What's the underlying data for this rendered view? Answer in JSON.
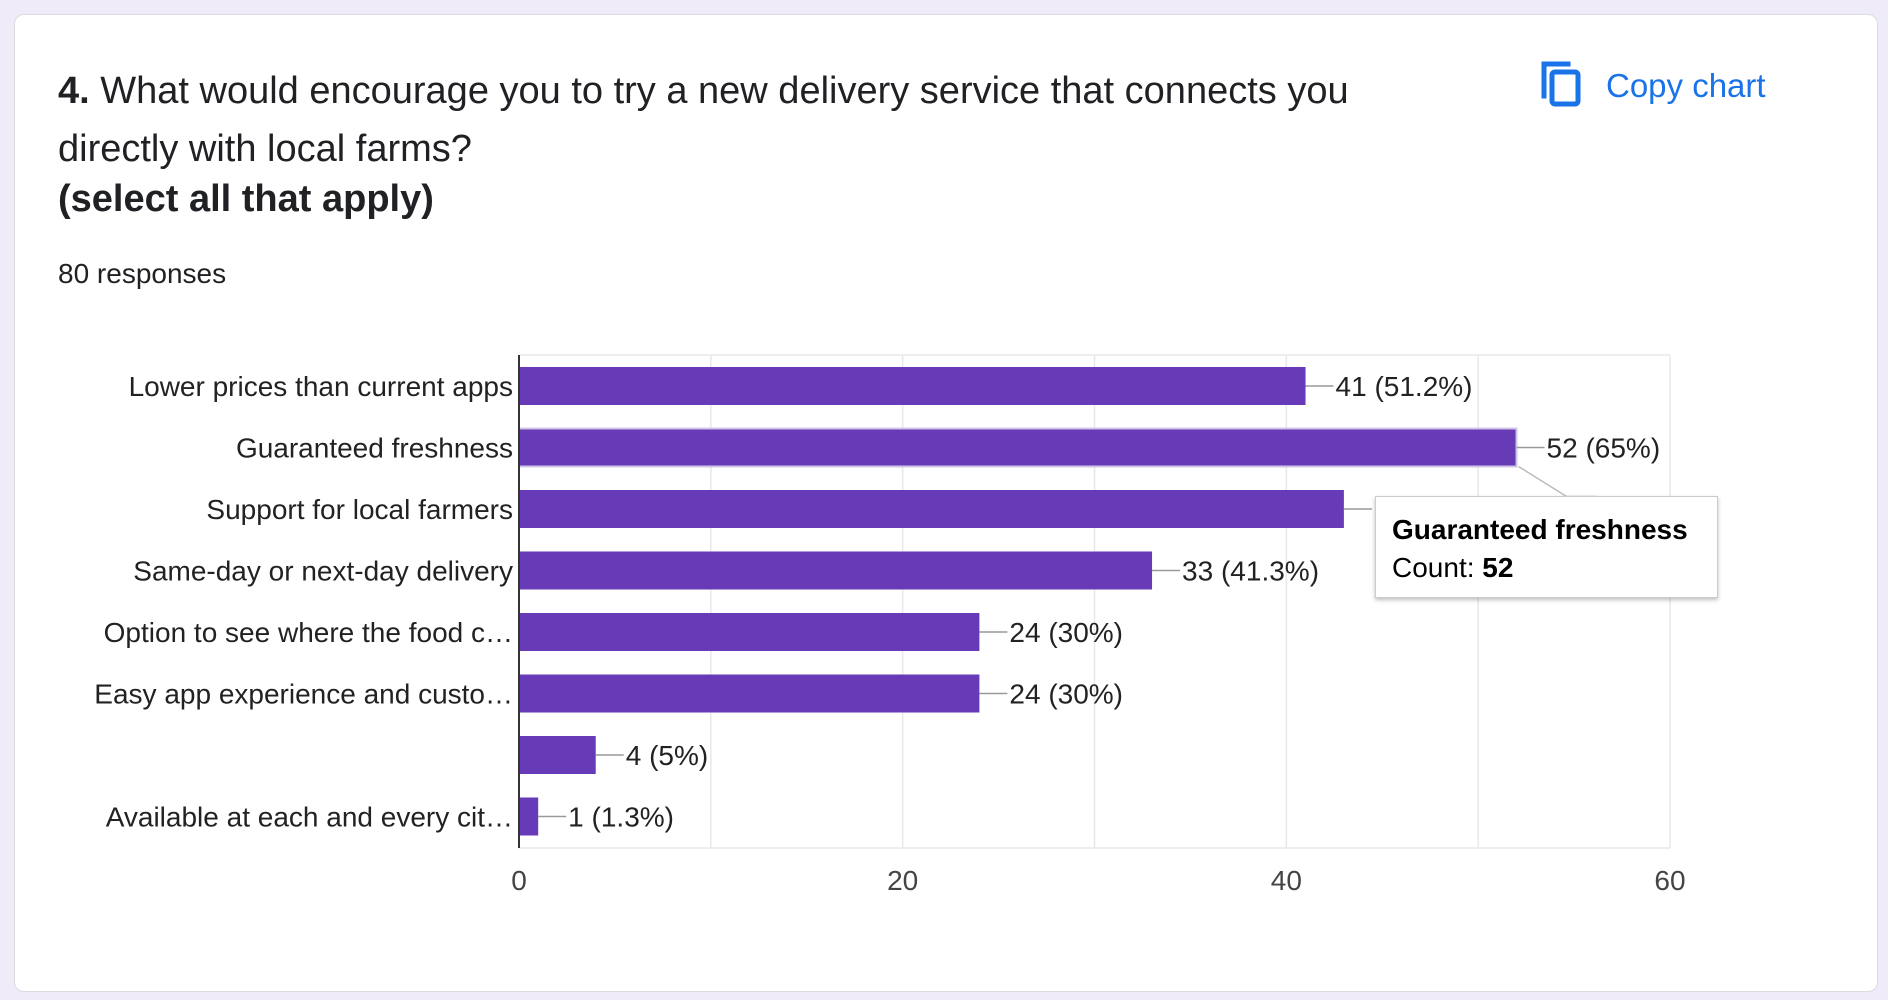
{
  "question": {
    "number": "4.",
    "text": "What would encourage you to try a new delivery service that connects you directly with local farms?",
    "subtitle": "(select all that apply)",
    "responses": "80 responses"
  },
  "toolbar": {
    "copy_label": "Copy chart",
    "copy_icon": "copy-icon"
  },
  "colors": {
    "bar": "#673ab7",
    "accent": "#1a73e8",
    "grid": "#e8e8e8",
    "axis": "#333333"
  },
  "chart_data": {
    "type": "bar",
    "orientation": "horizontal",
    "categories": [
      "Lower prices than current apps",
      "Guaranteed freshness",
      "Support for local farmers",
      "Same-day or next-day delivery",
      "Option to see where the food c…",
      "Easy app experience and custo…",
      "",
      "Available at each and every cit…"
    ],
    "values": [
      41,
      52,
      43,
      33,
      24,
      24,
      4,
      1
    ],
    "data_labels": [
      "41 (51.2%)",
      "52 (65%)",
      "",
      "33 (41.3%)",
      "24 (30%)",
      "24 (30%)",
      "4 (5%)",
      "1 (1.3%)"
    ],
    "xlim": [
      0,
      60
    ],
    "x_ticks": [
      0,
      20,
      40,
      60
    ],
    "grid": true,
    "highlighted_index": 1
  },
  "tooltip": {
    "title": "Guaranteed freshness",
    "count_label": "Count:",
    "count_value": "52"
  }
}
